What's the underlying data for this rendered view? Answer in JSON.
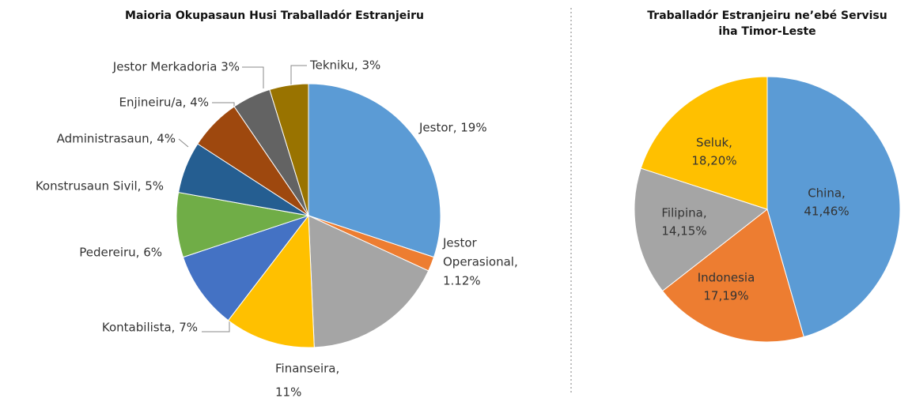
{
  "chart_data": [
    {
      "type": "pie",
      "title": [
        "Maioria Okupasaun Husi Traballadór Estranjeiru"
      ],
      "categories": [
        "Jestor",
        "Jestor Operasional",
        "Finanseira",
        "Kontabilista",
        "Pedereiru",
        "Konstrusaun Sivil",
        "Administrasaun",
        "Enjineiru/a",
        "Jestor Merkadoria",
        "Tekniku"
      ],
      "values": [
        19,
        1.12,
        11,
        7,
        6,
        5,
        4,
        4,
        3,
        3
      ],
      "labels": [
        [
          "Jestor, 19%"
        ],
        [
          "Jestor",
          "Operasional,",
          "1.12%"
        ],
        [
          "Finanseira,",
          "11%"
        ],
        [
          "Kontabilista, 7%"
        ],
        [
          "Pedereiru, 6%"
        ],
        [
          "Konstrusaun Sivil, 5%"
        ],
        [
          "Administrasaun, 4%"
        ],
        [
          "Enjineiru/a, 4%"
        ],
        [
          "Jestor Merkadoria 3%"
        ],
        [
          "Tekniku, 3%"
        ]
      ],
      "colors": [
        "#5b9bd5",
        "#ed7d31",
        "#a5a5a5",
        "#ffc000",
        "#4472c4",
        "#70ad47",
        "#255e91",
        "#9e480e",
        "#636363",
        "#997300"
      ]
    },
    {
      "type": "pie",
      "title": [
        "Traballadór Estranjeiru  ne’ebé Servisu",
        "iha Timor-Leste"
      ],
      "categories": [
        "China",
        "Indonesia",
        "Filipina",
        "Seluk"
      ],
      "values": [
        41.46,
        17.19,
        14.15,
        18.2
      ],
      "labels": [
        [
          "China,",
          "41,46%"
        ],
        [
          "Indonesia",
          "17,19%"
        ],
        [
          "Filipina,",
          "14,15%"
        ],
        [
          "Seluk,",
          "18,20%"
        ]
      ],
      "colors": [
        "#5b9bd5",
        "#ed7d31",
        "#a5a5a5",
        "#ffc000"
      ]
    }
  ]
}
